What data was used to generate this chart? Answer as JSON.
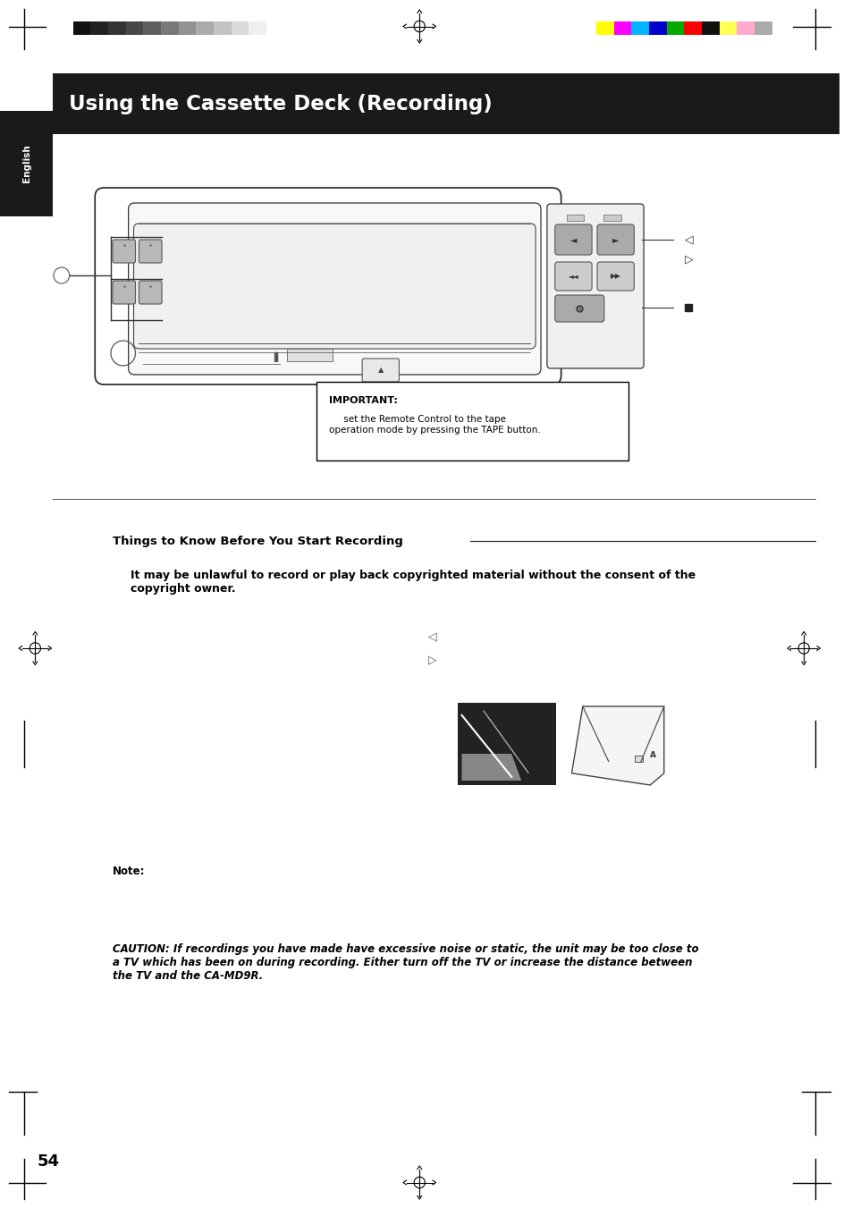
{
  "bg_color": "#ffffff",
  "page_width": 9.54,
  "page_height": 13.51,
  "title_text": "Using the Cassette Deck (Recording)",
  "title_bg": "#1a1a1a",
  "title_text_color": "#ffffff",
  "english_label": "English",
  "section_heading": "Things to Know Before You Start Recording",
  "section_body": "It may be unlawful to record or play back copyrighted material without the consent of the\ncopyright owner.",
  "important_label": "IMPORTANT:",
  "important_body": "     set the Remote Control to the tape\noperation mode by pressing the TAPE button.",
  "note_label": "Note:",
  "caution_text": "CAUTION: If recordings you have made have excessive noise or static, the unit may be too close to\na TV which has been on during recording. Either turn off the TV or increase the distance between\nthe TV and the CA-MD9R.",
  "page_number": "54",
  "grayscale_colors": [
    "#111111",
    "#222222",
    "#333333",
    "#484848",
    "#606060",
    "#787878",
    "#929292",
    "#ababab",
    "#c3c3c3",
    "#dadada",
    "#efefef",
    "#ffffff"
  ],
  "color_bars": [
    "#ffff00",
    "#ff00ff",
    "#00b4ff",
    "#0000cc",
    "#00aa00",
    "#ff0000",
    "#111111",
    "#ffff55",
    "#ffaacc",
    "#aaaaaa"
  ],
  "crosshair_color": "#000000"
}
